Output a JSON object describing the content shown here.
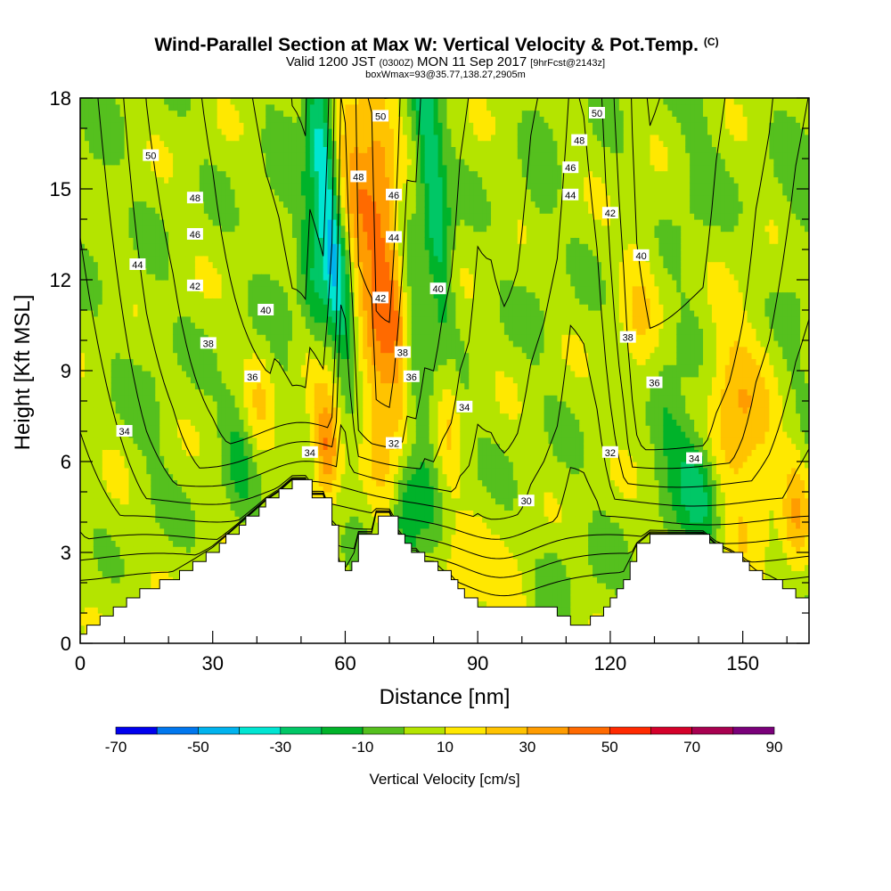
{
  "title": {
    "main": "Wind-Parallel Section at Max W: Vertical Velocity & Pot.Temp.",
    "main_suffix": "(C)",
    "valid_prefix": "Valid 1200 JST",
    "valid_z": "(0300Z)",
    "valid_date": "MON 11 Sep 2017",
    "forecast": "[9hrFcst@2143z]",
    "subtitle": "boxWmax=93@35.77,138.27,2905m"
  },
  "chart_data": {
    "type": "heatmap",
    "xlabel": "Distance [nm]",
    "ylabel": "Height [Kft MSL]",
    "xlim": [
      0,
      165
    ],
    "ylim": [
      0,
      18
    ],
    "x_ticks": [
      "0",
      "30",
      "60",
      "90",
      "120",
      "150"
    ],
    "x_tick_values": [
      0,
      30,
      60,
      90,
      120,
      150
    ],
    "x_minor_step": 10,
    "y_ticks": [
      "0",
      "3",
      "6",
      "9",
      "12",
      "15",
      "18"
    ],
    "y_tick_values": [
      0,
      3,
      6,
      9,
      12,
      15,
      18
    ],
    "y_minor_step": 1,
    "colorbar": {
      "title": "Vertical Velocity [cm/s]",
      "bounds": [
        -70,
        -60,
        -50,
        -40,
        -30,
        -20,
        -10,
        0,
        10,
        20,
        30,
        40,
        50,
        60,
        70,
        80,
        90
      ],
      "tick_labels": [
        "-70",
        "-50",
        "-30",
        "-10",
        "10",
        "30",
        "50",
        "70",
        "90"
      ],
      "tick_values": [
        -70,
        -50,
        -30,
        -10,
        10,
        30,
        50,
        70,
        90
      ],
      "colors": [
        "#0000ee",
        "#0077ee",
        "#00b3ee",
        "#00e5d2",
        "#00c766",
        "#00b32a",
        "#55c01e",
        "#b4e400",
        "#ffe800",
        "#ffc300",
        "#ff9c00",
        "#ff6a00",
        "#ff2a00",
        "#d4002a",
        "#a80050",
        "#7a007a"
      ]
    },
    "background_w_cms": 4,
    "w_features": [
      {
        "x": 56,
        "y": 14.5,
        "sx": 2.2,
        "sy": 4.0,
        "tilt": -0.12,
        "w": -48
      },
      {
        "x": 53,
        "y": 11.0,
        "sx": 2.0,
        "sy": 2.5,
        "tilt": -0.12,
        "w": -22
      },
      {
        "x": 62,
        "y": 16.0,
        "sx": 3.2,
        "sy": 3.0,
        "tilt": -0.15,
        "w": 26
      },
      {
        "x": 70,
        "y": 13.0,
        "sx": 2.8,
        "sy": 5.0,
        "tilt": -0.1,
        "w": 32
      },
      {
        "x": 67,
        "y": 9.0,
        "sx": 3.2,
        "sy": 3.0,
        "tilt": -0.1,
        "w": 26
      },
      {
        "x": 55,
        "y": 7.5,
        "sx": 2.6,
        "sy": 1.6,
        "tilt": -0.1,
        "w": 32
      },
      {
        "x": 56,
        "y": 6.3,
        "sx": 1.6,
        "sy": 1.0,
        "tilt": 0.0,
        "w": 22
      },
      {
        "x": 80,
        "y": 15.0,
        "sx": 2.2,
        "sy": 4.0,
        "tilt": -0.12,
        "w": -35
      },
      {
        "x": 76,
        "y": 9.0,
        "sx": 2.2,
        "sy": 3.5,
        "tilt": -0.12,
        "w": -22
      },
      {
        "x": 74,
        "y": 4.2,
        "sx": 2.5,
        "sy": 1.6,
        "tilt": 0.0,
        "w": -28
      },
      {
        "x": 84,
        "y": 8.5,
        "sx": 2.0,
        "sy": 2.2,
        "tilt": 0.0,
        "w": 18
      },
      {
        "x": 140,
        "y": 5.2,
        "sx": 3.2,
        "sy": 1.5,
        "tilt": -0.2,
        "w": -32
      },
      {
        "x": 133,
        "y": 7.3,
        "sx": 2.5,
        "sy": 1.8,
        "tilt": -0.15,
        "w": -14
      },
      {
        "x": 147,
        "y": 7.5,
        "sx": 4.0,
        "sy": 2.5,
        "tilt": -0.05,
        "w": 16
      },
      {
        "x": 152,
        "y": 6.5,
        "sx": 5.0,
        "sy": 3.0,
        "tilt": 0.0,
        "w": 14
      },
      {
        "x": 162,
        "y": 4.2,
        "sx": 2.2,
        "sy": 1.6,
        "tilt": 0.0,
        "w": 22
      },
      {
        "x": 127,
        "y": 11.0,
        "sx": 3.2,
        "sy": 2.5,
        "tilt": 0.0,
        "w": 13
      },
      {
        "x": 162,
        "y": 12.0,
        "sx": 3.0,
        "sy": 5.0,
        "tilt": 0.0,
        "w": -6
      },
      {
        "x": 139,
        "y": 15.0,
        "sx": 4.0,
        "sy": 3.5,
        "tilt": 0.0,
        "w": -6
      },
      {
        "x": 104,
        "y": 15.0,
        "sx": 2.2,
        "sy": 3.5,
        "tilt": 0.0,
        "w": -6
      },
      {
        "x": 36,
        "y": 6.2,
        "sx": 2.2,
        "sy": 1.6,
        "tilt": -0.1,
        "w": -14
      },
      {
        "x": 41,
        "y": 7.8,
        "sx": 2.5,
        "sy": 1.5,
        "tilt": 0.0,
        "w": 12
      },
      {
        "x": 16,
        "y": 7.5,
        "sx": 4.0,
        "sy": 3.0,
        "tilt": 0.0,
        "w": -5
      },
      {
        "x": 45,
        "y": 13.0,
        "sx": 3.0,
        "sy": 4.0,
        "tilt": 0.0,
        "w": -5
      },
      {
        "x": 86,
        "y": 2.0,
        "sx": 4.5,
        "sy": 1.5,
        "tilt": 0.0,
        "w": 13
      },
      {
        "x": 98,
        "y": 1.5,
        "sx": 3.0,
        "sy": 1.0,
        "tilt": 0.0,
        "w": 13
      },
      {
        "x": 108,
        "y": 2.0,
        "sx": 2.2,
        "sy": 1.2,
        "tilt": 0.0,
        "w": -8
      },
      {
        "x": 118,
        "y": 2.8,
        "sx": 3.0,
        "sy": 1.0,
        "tilt": 0.0,
        "w": -4
      },
      {
        "x": 10,
        "y": 3.5,
        "sx": 8.0,
        "sy": 2.5,
        "tilt": 0.0,
        "w": 2
      },
      {
        "x": 4,
        "y": 17.0,
        "sx": 3.0,
        "sy": 2.0,
        "tilt": 0.0,
        "w": -5
      }
    ],
    "terrain": {
      "x_nm": [
        0,
        3,
        6,
        9,
        12,
        15,
        18,
        21,
        24,
        27,
        30,
        33,
        36,
        39,
        42,
        45,
        48,
        51,
        52,
        55,
        57,
        59,
        60,
        62,
        63,
        66,
        67,
        70,
        72,
        74,
        76,
        78,
        80,
        82,
        84,
        86,
        88,
        90,
        93,
        96,
        99,
        102,
        105,
        108,
        111,
        114,
        117,
        120,
        123,
        126,
        129,
        132,
        135,
        138,
        141,
        144,
        147,
        150,
        153,
        156,
        159,
        162,
        165
      ],
      "height_kft": [
        0.3,
        0.6,
        0.9,
        1.2,
        1.5,
        1.8,
        2.0,
        2.2,
        2.5,
        2.8,
        3.1,
        3.5,
        3.9,
        4.3,
        4.7,
        5.0,
        5.4,
        5.4,
        4.9,
        4.9,
        3.9,
        2.3,
        2.3,
        2.9,
        3.6,
        3.6,
        4.3,
        4.3,
        3.6,
        3.0,
        3.0,
        2.6,
        2.6,
        2.3,
        2.1,
        1.7,
        1.5,
        1.1,
        1.1,
        1.3,
        1.3,
        1.1,
        1.1,
        1.0,
        0.6,
        0.7,
        1.0,
        1.6,
        2.2,
        3.2,
        3.6,
        3.6,
        3.6,
        3.6,
        3.6,
        3.2,
        3.0,
        2.7,
        2.3,
        2.1,
        1.8,
        1.5,
        1.3
      ]
    },
    "theta_isolines_C": [
      29,
      30,
      31,
      32,
      33,
      34,
      35,
      36,
      37,
      38,
      39,
      40,
      41,
      42,
      43,
      44,
      45,
      46,
      47,
      48,
      49,
      50,
      51,
      52,
      53
    ],
    "theta_labels": [
      {
        "text": "50",
        "x": 16,
        "y": 16.1
      },
      {
        "text": "48",
        "x": 26,
        "y": 14.7
      },
      {
        "text": "46",
        "x": 26,
        "y": 13.5
      },
      {
        "text": "44",
        "x": 13,
        "y": 12.5
      },
      {
        "text": "42",
        "x": 26,
        "y": 11.8
      },
      {
        "text": "40",
        "x": 42,
        "y": 11.0
      },
      {
        "text": "38",
        "x": 29,
        "y": 9.9
      },
      {
        "text": "36",
        "x": 39,
        "y": 8.8
      },
      {
        "text": "34",
        "x": 10,
        "y": 7.0
      },
      {
        "text": "50",
        "x": 68,
        "y": 17.4
      },
      {
        "text": "48",
        "x": 63,
        "y": 15.4
      },
      {
        "text": "46",
        "x": 71,
        "y": 14.8
      },
      {
        "text": "44",
        "x": 71,
        "y": 13.4
      },
      {
        "text": "42",
        "x": 68,
        "y": 11.4
      },
      {
        "text": "40",
        "x": 81,
        "y": 11.7
      },
      {
        "text": "38",
        "x": 73,
        "y": 9.6
      },
      {
        "text": "36",
        "x": 75,
        "y": 8.8
      },
      {
        "text": "34",
        "x": 52,
        "y": 6.3
      },
      {
        "text": "32",
        "x": 71,
        "y": 6.6
      },
      {
        "text": "34",
        "x": 87,
        "y": 7.8
      },
      {
        "text": "30",
        "x": 101,
        "y": 4.7
      },
      {
        "text": "32",
        "x": 120,
        "y": 6.3
      },
      {
        "text": "36",
        "x": 130,
        "y": 8.6
      },
      {
        "text": "38",
        "x": 124,
        "y": 10.1
      },
      {
        "text": "40",
        "x": 127,
        "y": 12.8
      },
      {
        "text": "42",
        "x": 120,
        "y": 14.2
      },
      {
        "text": "44",
        "x": 111,
        "y": 14.8
      },
      {
        "text": "46",
        "x": 111,
        "y": 15.7
      },
      {
        "text": "48",
        "x": 113,
        "y": 16.6
      },
      {
        "text": "50",
        "x": 117,
        "y": 17.5
      },
      {
        "text": "34",
        "x": 139,
        "y": 6.1
      }
    ]
  }
}
